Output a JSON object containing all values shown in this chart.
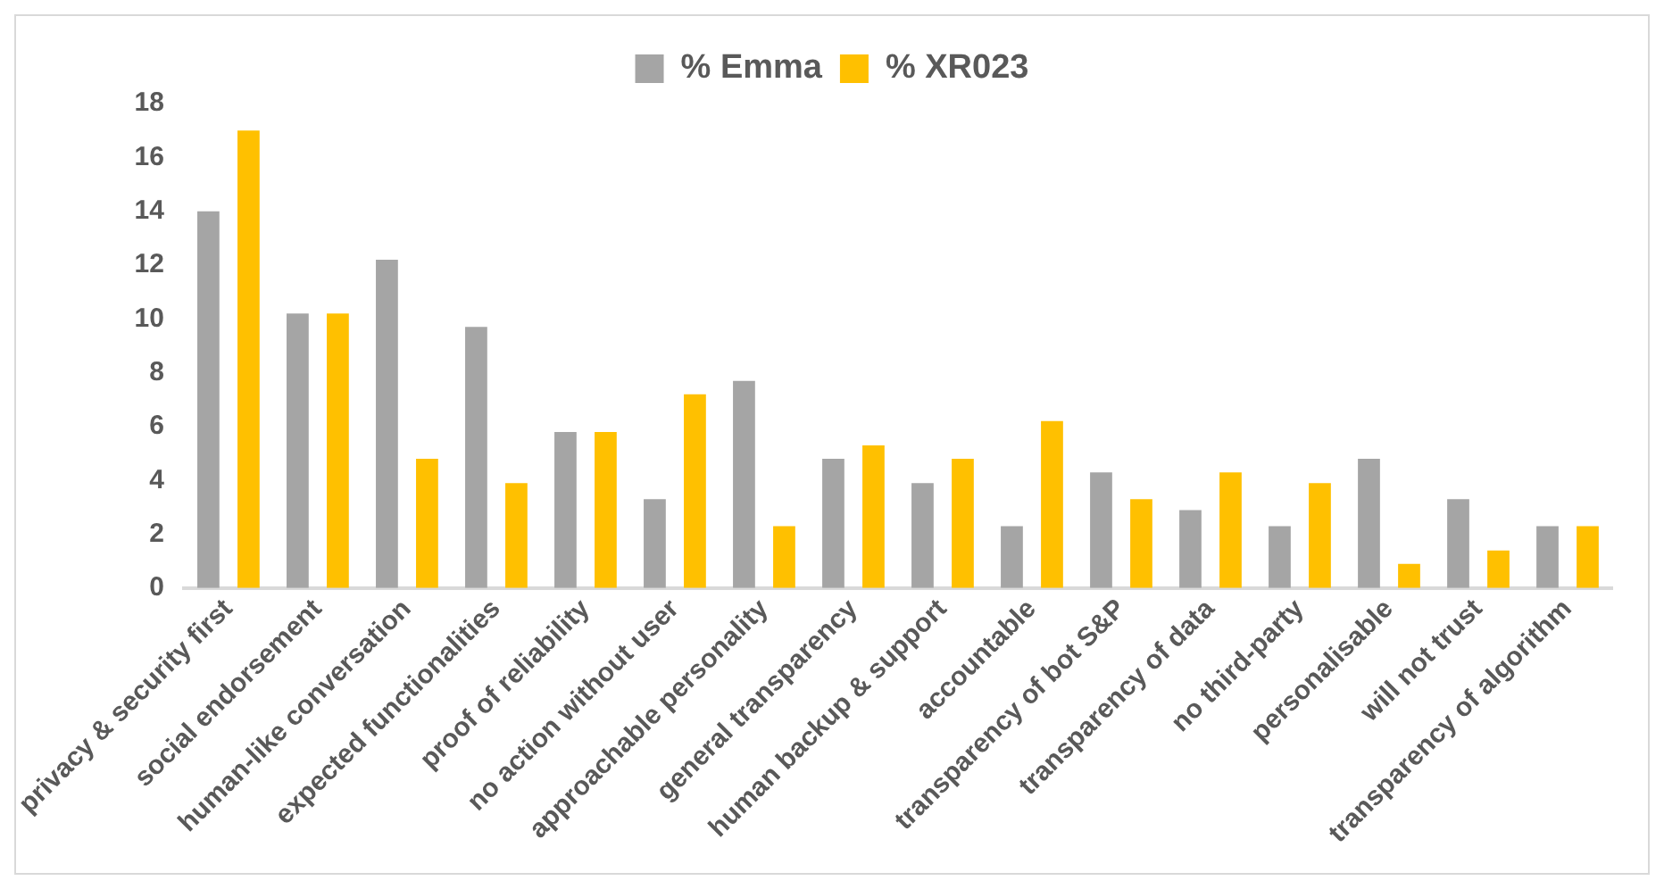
{
  "chart_data": {
    "type": "bar",
    "categories": [
      "privacy & security first",
      "social endorsement",
      "human-like conversation",
      "expected functionalities",
      "proof of reliability",
      "no action without user",
      "approachable personality",
      "general transparency",
      "human backup & support",
      "accountable",
      "transparency of bot S&P",
      "transparency of data",
      "no third-party",
      "personalisable",
      "will not trust",
      "transparency of algorithm"
    ],
    "series": [
      {
        "name": "% Emma",
        "color": "#a5a5a5",
        "values": [
          14,
          10.2,
          12.2,
          9.7,
          5.8,
          3.3,
          7.7,
          4.8,
          3.9,
          2.3,
          4.3,
          2.9,
          2.3,
          4.8,
          3.3,
          2.3
        ]
      },
      {
        "name": "% XR023",
        "color": "#ffc000",
        "values": [
          17,
          10.2,
          4.8,
          3.9,
          5.8,
          7.2,
          2.3,
          5.3,
          4.8,
          6.2,
          3.3,
          4.3,
          3.9,
          0.9,
          1.4,
          2.3
        ]
      }
    ],
    "ylim": [
      0,
      18
    ],
    "yticks": [
      0,
      2,
      4,
      6,
      8,
      10,
      12,
      14,
      16,
      18
    ],
    "grid": false,
    "legend": "top"
  }
}
